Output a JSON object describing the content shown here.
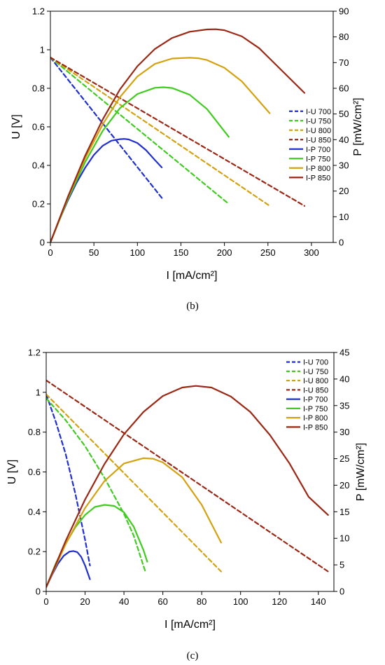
{
  "chart_data": [
    {
      "type": "line",
      "panel": "b",
      "caption": "(b)",
      "xlabel": "I [mA/cm²]",
      "ylabel_left": "U [V]",
      "ylabel_right": "P [mW/cm²]",
      "xlim": [
        0,
        325
      ],
      "ylim_left": [
        0,
        1.2
      ],
      "ylim_right": [
        0,
        90
      ],
      "x_ticks": [
        0,
        50,
        100,
        150,
        200,
        250,
        300
      ],
      "y_left_ticks": [
        0,
        0.2,
        0.4,
        0.6,
        0.8,
        1,
        1.2
      ],
      "y_right_ticks": [
        0,
        10,
        20,
        30,
        40,
        50,
        60,
        70,
        80,
        90
      ],
      "x_tick_labels": [
        "0",
        "50",
        "100",
        "150",
        "200",
        "250",
        "300"
      ],
      "y_left_tick_labels": [
        "0",
        "0.2",
        "0.4",
        "0.6",
        "0.8",
        "1",
        "1.2"
      ],
      "y_right_tick_labels": [
        "0",
        "10",
        "20",
        "30",
        "40",
        "50",
        "60",
        "70",
        "80",
        "90"
      ],
      "legend_position": "right",
      "series": [
        {
          "name": "I-U 700",
          "axis": "left",
          "style": "dashed",
          "color": "#1f2fd1",
          "x": [
            0,
            130
          ],
          "y": [
            0.96,
            0.22
          ]
        },
        {
          "name": "I-U 750",
          "axis": "left",
          "style": "dashed",
          "color": "#3fcc1f",
          "x": [
            0,
            205
          ],
          "y": [
            0.96,
            0.2
          ]
        },
        {
          "name": "I-U 800",
          "axis": "left",
          "style": "dashed",
          "color": "#d4a20f",
          "x": [
            0,
            252
          ],
          "y": [
            0.96,
            0.19
          ]
        },
        {
          "name": "I-U 850",
          "axis": "left",
          "style": "dashed",
          "color": "#9c2714",
          "x": [
            0,
            292
          ],
          "y": [
            0.96,
            0.19
          ]
        },
        {
          "name": "I-P 700",
          "axis": "right",
          "style": "solid",
          "color": "#1f2fd1",
          "x": [
            0,
            10,
            20,
            30,
            40,
            50,
            60,
            70,
            80,
            85,
            90,
            100,
            110,
            120,
            128
          ],
          "y": [
            0,
            8.5,
            16.3,
            23.2,
            29.1,
            34.1,
            37.6,
            39.6,
            40.2,
            40.3,
            40.1,
            38.7,
            35.9,
            32.1,
            29.2
          ]
        },
        {
          "name": "I-P 750",
          "axis": "right",
          "style": "solid",
          "color": "#3fcc1f",
          "x": [
            0,
            20,
            40,
            60,
            80,
            100,
            120,
            130,
            140,
            160,
            180,
            205
          ],
          "y": [
            0,
            16.8,
            31.3,
            43.4,
            52.3,
            57.8,
            60.2,
            60.4,
            60.1,
            57.5,
            51.9,
            41.1
          ]
        },
        {
          "name": "I-P 800",
          "axis": "right",
          "style": "solid",
          "color": "#d4a20f",
          "x": [
            0,
            20,
            40,
            60,
            80,
            100,
            120,
            140,
            160,
            170,
            180,
            200,
            220,
            252
          ],
          "y": [
            0,
            17.4,
            32.8,
            45.9,
            56.6,
            64.6,
            69.5,
            71.6,
            71.9,
            71.7,
            71.0,
            68.0,
            62.7,
            50.3
          ]
        },
        {
          "name": "I-P 850",
          "axis": "right",
          "style": "solid",
          "color": "#9c2714",
          "x": [
            0,
            20,
            40,
            60,
            80,
            100,
            120,
            140,
            160,
            180,
            190,
            200,
            220,
            240,
            260,
            292
          ],
          "y": [
            0,
            17.7,
            33.8,
            47.8,
            59.6,
            68.6,
            75.3,
            79.6,
            82.0,
            82.9,
            83.0,
            82.6,
            80.2,
            75.6,
            68.9,
            58.2
          ]
        }
      ]
    },
    {
      "type": "line",
      "panel": "c",
      "caption": "(c)",
      "xlabel": "I [mA/cm²]",
      "ylabel_left": "U [V]",
      "ylabel_right": "P [mW/cm²]",
      "xlim": [
        0,
        148
      ],
      "ylim_left": [
        0,
        1.2
      ],
      "ylim_right": [
        0,
        45
      ],
      "x_ticks": [
        0,
        20,
        40,
        60,
        80,
        100,
        120,
        140
      ],
      "y_left_ticks": [
        0,
        0.2,
        0.4,
        0.6,
        0.8,
        1,
        1.2
      ],
      "y_right_ticks": [
        0,
        5,
        10,
        15,
        20,
        25,
        30,
        35,
        40,
        45
      ],
      "x_tick_labels": [
        "0",
        "20",
        "40",
        "60",
        "80",
        "100",
        "120",
        "140"
      ],
      "y_left_tick_labels": [
        "0",
        "0.2",
        "0.4",
        "0.6",
        "0.8",
        "1",
        "1.2"
      ],
      "y_right_tick_labels": [
        "0",
        "5",
        "10",
        "15",
        "20",
        "25",
        "30",
        "35",
        "40",
        "45"
      ],
      "legend_position": "top-right",
      "series": [
        {
          "name": "I-U 700",
          "axis": "left",
          "style": "dashed",
          "color": "#1f2fd1",
          "x": [
            0,
            5,
            10,
            15,
            20,
            22.5
          ],
          "y": [
            0.99,
            0.85,
            0.69,
            0.49,
            0.26,
            0.13
          ]
        },
        {
          "name": "I-U 750",
          "axis": "left",
          "style": "dashed",
          "color": "#3fcc1f",
          "x": [
            0,
            10,
            20,
            30,
            40,
            45,
            51
          ],
          "y": [
            0.97,
            0.86,
            0.73,
            0.57,
            0.39,
            0.28,
            0.1
          ]
        },
        {
          "name": "I-U 800",
          "axis": "left",
          "style": "dashed",
          "color": "#d4a20f",
          "x": [
            0,
            90
          ],
          "y": [
            0.99,
            0.1
          ]
        },
        {
          "name": "I-U 850",
          "axis": "left",
          "style": "dashed",
          "color": "#9c2714",
          "x": [
            0,
            145
          ],
          "y": [
            1.06,
            0.1
          ]
        },
        {
          "name": "I-P 700",
          "axis": "right",
          "style": "solid",
          "color": "#1f2fd1",
          "x": [
            0,
            3,
            6,
            9,
            12,
            14,
            16,
            18,
            20,
            22.5
          ],
          "y": [
            0.8,
            3.1,
            5.2,
            6.7,
            7.5,
            7.6,
            7.4,
            6.5,
            4.9,
            2.3
          ]
        },
        {
          "name": "I-P 750",
          "axis": "right",
          "style": "solid",
          "color": "#3fcc1f",
          "x": [
            0,
            5,
            10,
            15,
            20,
            25,
            30,
            35,
            40,
            45,
            50,
            52
          ],
          "y": [
            0.8,
            5.3,
            9.0,
            12.1,
            14.4,
            15.9,
            16.3,
            16.1,
            14.9,
            12.2,
            7.8,
            5.6
          ]
        },
        {
          "name": "I-P 800",
          "axis": "right",
          "style": "solid",
          "color": "#d4a20f",
          "x": [
            0,
            10,
            20,
            30,
            40,
            50,
            55,
            60,
            70,
            80,
            90
          ],
          "y": [
            0.8,
            8.9,
            15.7,
            20.8,
            24.1,
            25.1,
            25.0,
            24.3,
            21.5,
            16.3,
            9.2
          ]
        },
        {
          "name": "I-P 850",
          "axis": "right",
          "style": "solid",
          "color": "#9c2714",
          "x": [
            0,
            10,
            20,
            30,
            40,
            50,
            60,
            70,
            77,
            85,
            95,
            105,
            115,
            125,
            135,
            145
          ],
          "y": [
            0.8,
            9.5,
            17.3,
            24.0,
            29.6,
            33.8,
            36.8,
            38.4,
            38.7,
            38.4,
            36.7,
            33.8,
            29.5,
            24.2,
            17.8,
            14.4
          ]
        }
      ]
    }
  ]
}
